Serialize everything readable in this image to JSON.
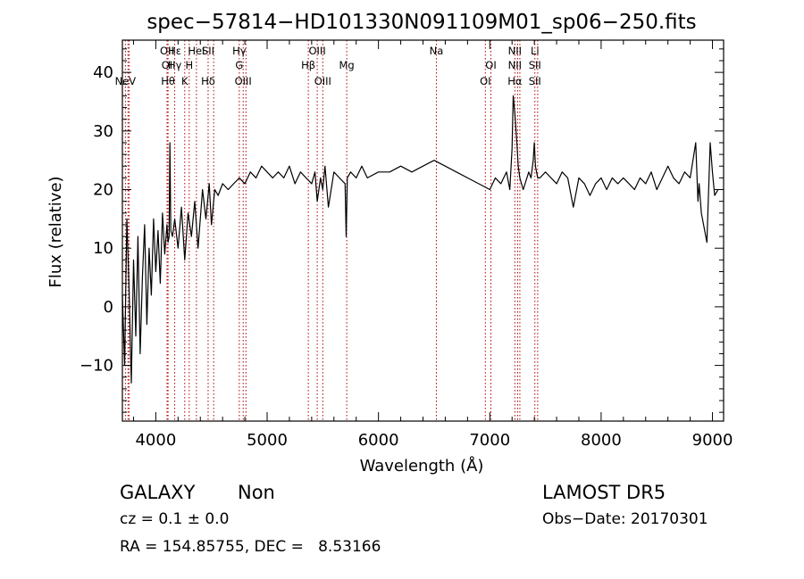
{
  "chart_data": {
    "type": "line",
    "title": "spec−57814−HD101330N091109M01_sp06−250.fits",
    "xlabel": "Wavelength (Å)",
    "ylabel": "Flux (relative)",
    "xlim": [
      3700,
      9100
    ],
    "ylim": [
      -19.5,
      45.5
    ],
    "xticks": [
      4000,
      5000,
      6000,
      7000,
      8000,
      9000
    ],
    "yticks": [
      -10,
      0,
      10,
      20,
      30,
      40
    ],
    "grid": false,
    "series": [
      {
        "x": [
          3700,
          3720,
          3740,
          3760,
          3780,
          3800,
          3820,
          3840,
          3860,
          3880,
          3900,
          3920,
          3940,
          3960,
          3980,
          4000,
          4020,
          4040,
          4060,
          4080,
          4100,
          4110,
          4120,
          4127,
          4135,
          4150,
          4170,
          4200,
          4230,
          4260,
          4290,
          4320,
          4350,
          4380,
          4400,
          4420,
          4450,
          4480,
          4500,
          4530,
          4560,
          4600,
          4650,
          4700,
          4750,
          4800,
          4850,
          4900,
          4950,
          5000,
          5050,
          5100,
          5150,
          5200,
          5250,
          5300,
          5350,
          5400,
          5430,
          5450,
          5480,
          5500,
          5520,
          5550,
          5600,
          5650,
          5700,
          5710,
          5720,
          5750,
          5800,
          5850,
          5900,
          6000,
          6100,
          6200,
          6300,
          6400,
          6500,
          6600,
          6700,
          6800,
          6900,
          7000,
          7050,
          7100,
          7150,
          7180,
          7200,
          7210,
          7225,
          7240,
          7255,
          7270,
          7300,
          7350,
          7370,
          7390,
          7400,
          7410,
          7430,
          7450,
          7500,
          7550,
          7600,
          7650,
          7700,
          7750,
          7800,
          7850,
          7900,
          7950,
          8000,
          8050,
          8100,
          8150,
          8200,
          8250,
          8300,
          8350,
          8400,
          8450,
          8500,
          8550,
          8600,
          8650,
          8700,
          8750,
          8800,
          8850,
          8870,
          8880,
          8900,
          8950,
          8980,
          9000,
          9020,
          9050
        ],
        "y": [
          2,
          -10,
          15,
          3,
          -13,
          8,
          -5,
          12,
          -8,
          5,
          14,
          -3,
          10,
          2,
          15,
          6,
          13,
          4,
          16,
          9,
          14,
          11,
          12,
          28,
          13,
          12,
          15,
          10,
          17,
          8,
          16,
          12,
          18,
          10,
          15,
          20,
          15,
          21,
          14,
          20,
          19,
          21,
          20,
          21,
          22,
          21,
          23,
          22,
          24,
          23,
          22,
          23,
          22,
          24,
          21,
          23,
          22,
          21,
          23,
          18,
          22,
          20,
          24,
          17,
          23,
          22,
          21,
          12,
          22,
          23,
          22,
          24,
          22,
          23,
          23,
          24,
          23,
          24,
          25,
          24,
          23,
          22,
          21,
          20,
          22,
          21,
          23,
          20,
          27,
          36,
          33,
          29,
          24,
          22,
          20,
          23,
          22,
          25,
          28,
          24,
          22,
          22,
          23,
          22,
          21,
          23,
          22,
          17,
          22,
          21,
          19,
          21,
          22,
          20,
          22,
          21,
          22,
          21,
          20,
          22,
          21,
          23,
          20,
          22,
          24,
          22,
          21,
          23,
          22,
          28,
          18,
          21,
          16,
          11,
          28,
          23,
          19,
          20
        ]
      }
    ],
    "lines": [
      {
        "x": 3727,
        "labels": [
          {
            "text": "NeV",
            "row": 3
          }
        ]
      },
      {
        "x": 3750,
        "labels": []
      },
      {
        "x": 3760,
        "labels": []
      },
      {
        "x": 4101,
        "labels": [
          {
            "text": "OII",
            "row": 0
          },
          {
            "text": "OI",
            "row": 1
          }
        ]
      },
      {
        "x": 4110,
        "labels": [
          {
            "text": "Hθ",
            "row": 3
          }
        ]
      },
      {
        "x": 4170,
        "labels": [
          {
            "text": "Hε",
            "row": 0
          },
          {
            "text": "Hγ",
            "row": 1
          }
        ]
      },
      {
        "x": 4260,
        "labels": [
          {
            "text": "K",
            "row": 3
          }
        ]
      },
      {
        "x": 4300,
        "labels": [
          {
            "text": "H",
            "row": 2
          }
        ]
      },
      {
        "x": 4365,
        "labels": [
          {
            "text": "HeI",
            "row": 0
          }
        ]
      },
      {
        "x": 4470,
        "labels": [
          {
            "text": "SII",
            "row": 0
          },
          {
            "text": "Hδ",
            "row": 3
          }
        ]
      },
      {
        "x": 4520,
        "labels": []
      },
      {
        "x": 4750,
        "labels": [
          {
            "text": "Hγ",
            "row": 0
          },
          {
            "text": "G",
            "row": 2
          }
        ]
      },
      {
        "x": 4785,
        "labels": [
          {
            "text": "OIII",
            "row": 3
          }
        ]
      },
      {
        "x": 4810,
        "labels": []
      },
      {
        "x": 5370,
        "labels": [
          {
            "text": "Hβ",
            "row": 2
          }
        ]
      },
      {
        "x": 5450,
        "labels": [
          {
            "text": "OIII",
            "row": 0
          }
        ]
      },
      {
        "x": 5500,
        "labels": [
          {
            "text": "OIII",
            "row": 3
          }
        ]
      },
      {
        "x": 5715,
        "labels": [
          {
            "text": "Mg",
            "row": 2
          }
        ]
      },
      {
        "x": 6520,
        "labels": [
          {
            "text": "Na",
            "row": 0
          }
        ]
      },
      {
        "x": 6960,
        "labels": [
          {
            "text": "OI",
            "row": 3
          }
        ]
      },
      {
        "x": 7010,
        "labels": [
          {
            "text": "OI",
            "row": 1
          }
        ]
      },
      {
        "x": 7225,
        "labels": [
          {
            "text": "NII",
            "row": 0
          },
          {
            "text": "NII",
            "row": 2
          },
          {
            "text": "Hα",
            "row": 3
          }
        ]
      },
      {
        "x": 7250,
        "labels": []
      },
      {
        "x": 7270,
        "labels": []
      },
      {
        "x": 7405,
        "labels": [
          {
            "text": "Li",
            "row": 0
          },
          {
            "text": "SII",
            "row": 2
          },
          {
            "text": "SII",
            "row": 3
          }
        ]
      },
      {
        "x": 7430,
        "labels": []
      }
    ]
  },
  "info": {
    "class_label": "GALAXY",
    "subclass_label": "Non",
    "cz_text": "cz = 0.1 ± 0.0",
    "radec_text": "RA = 154.85755, DEC =   8.53166",
    "survey_label": "LAMOST DR5",
    "obsdate_text": "Obs−Date: 20170301"
  }
}
